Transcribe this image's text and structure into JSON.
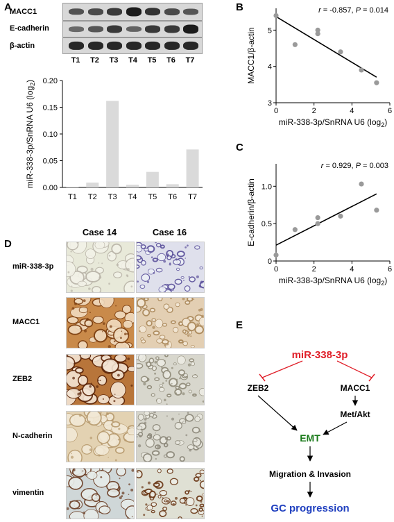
{
  "panels": {
    "A": "A",
    "B": "B",
    "C": "C",
    "D": "D",
    "E": "E"
  },
  "blot": {
    "rows": [
      "MACC1",
      "E-cadherin",
      "β-actin"
    ],
    "lanes": [
      "T1",
      "T2",
      "T3",
      "T4",
      "T5",
      "T6",
      "T7"
    ],
    "macc1": [
      0.55,
      0.6,
      0.75,
      1.0,
      0.8,
      0.6,
      0.5
    ],
    "ecad": [
      0.35,
      0.5,
      0.75,
      0.4,
      0.75,
      0.75,
      1.0
    ],
    "actin": [
      0.9,
      0.9,
      0.9,
      0.9,
      0.9,
      0.9,
      0.9
    ]
  },
  "chart_data": [
    {
      "type": "bar",
      "categories": [
        "T1",
        "T2",
        "T3",
        "T4",
        "T5",
        "T6",
        "T7"
      ],
      "values": [
        0.001,
        0.009,
        0.162,
        0.005,
        0.029,
        0.006,
        0.071
      ],
      "ylabel": "miR-338-3p/SnRNA U6 (log2)",
      "ylim": [
        0,
        0.2
      ],
      "yticks": [
        "0.00",
        "0.05",
        "0.10",
        "0.15",
        "0.20"
      ],
      "color": "#dadada"
    },
    {
      "type": "scatter",
      "x": [
        0,
        1,
        2.2,
        2.2,
        3.4,
        4.5,
        5.3
      ],
      "y": [
        5.4,
        4.6,
        4.9,
        5.0,
        4.4,
        3.9,
        3.55
      ],
      "xlabel": "miR-338-3p/SnRNA U6 (log2)",
      "ylabel": "MACC1/β-actin",
      "annotation_r": "r = -0.857,",
      "annotation_p": "P = 0.014",
      "xlim": [
        0,
        6
      ],
      "ylim": [
        3,
        5.6
      ],
      "xticks": [
        "0",
        "2",
        "4",
        "6"
      ],
      "yticks": [
        "3",
        "4",
        "5"
      ]
    },
    {
      "type": "scatter",
      "x": [
        0,
        1,
        2.2,
        2.2,
        3.4,
        4.5,
        5.3
      ],
      "y": [
        0.08,
        0.42,
        0.5,
        0.58,
        0.6,
        1.03,
        0.68
      ],
      "xlabel": "miR-338-3p/SnRNA U6 (log2)",
      "ylabel": "E-cadherin/β-actin",
      "annotation_r": "r = 0.929,",
      "annotation_p": "P = 0.003",
      "xlim": [
        0,
        6
      ],
      "ylim": [
        0,
        1.3
      ],
      "xticks": [
        "0",
        "2",
        "4",
        "6"
      ],
      "yticks": [
        "0",
        "0.5",
        "1.0"
      ]
    }
  ],
  "ihc": {
    "cases": [
      "Case 14",
      "Case 16"
    ],
    "rows": [
      "miR-338-3p",
      "MACC1",
      "ZEB2",
      "N-cadherin",
      "vimentin"
    ]
  },
  "diagram": {
    "mir": "miR-338-3p",
    "zeb2": "ZEB2",
    "macc1": "MACC1",
    "metakt": "Met/Akt",
    "emt": "EMT",
    "migration": "Migration & Invasion",
    "gc": "GC progression",
    "colors": {
      "mir": "#e0202a",
      "emt": "#1a7a1a",
      "gc": "#1f3fbf"
    }
  }
}
